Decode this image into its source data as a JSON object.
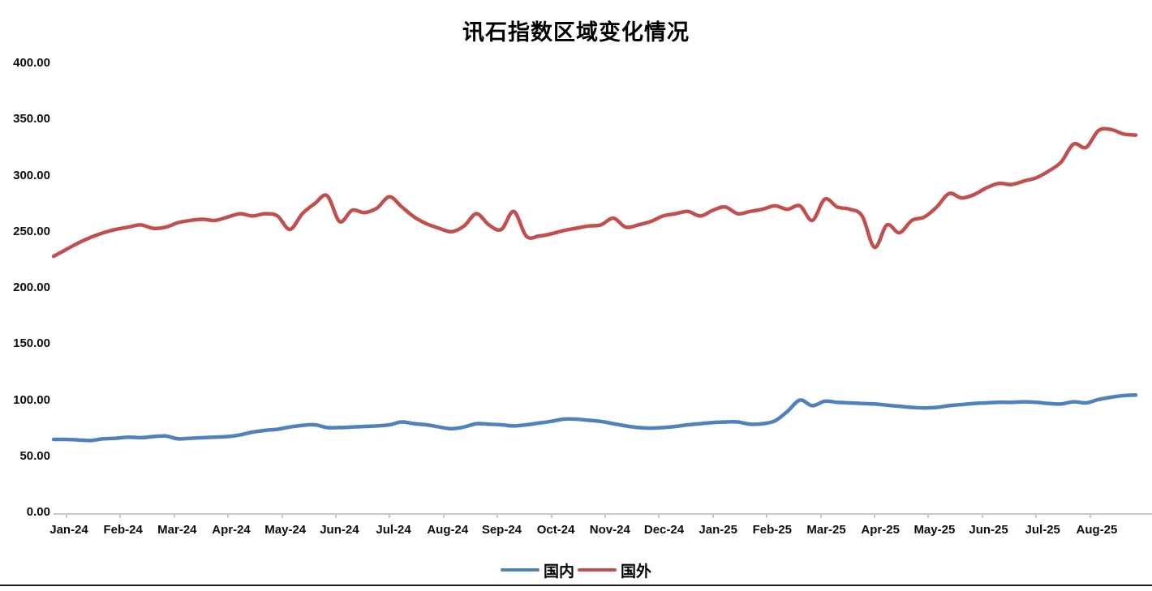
{
  "title": "讯石指数区域变化情况",
  "colors": {
    "domestic_line": "#4F81BD",
    "foreign_line": "#C0504D",
    "axis": "#C8C8C8",
    "text": "#000000"
  },
  "y_axis": {
    "tick_labels": [
      "400.00",
      "350.00",
      "300.00",
      "250.00",
      "200.00",
      "150.00",
      "100.00",
      "50.00",
      "0.00"
    ],
    "min": 0,
    "max": 400,
    "step": 50
  },
  "x_axis": {
    "tick_labels": [
      "Jan-24",
      "Feb-24",
      "Mar-24",
      "Apr-24",
      "May-24",
      "Jun-24",
      "Jul-24",
      "Aug-24",
      "Sep-24",
      "Oct-24",
      "Nov-24",
      "Dec-24",
      "Jan-25",
      "Feb-25",
      "Mar-25",
      "Apr-25",
      "May-25",
      "Jun-25",
      "Jul-25",
      "Aug-25"
    ]
  },
  "legend": [
    {
      "label": "国内",
      "color": "#4F81BD"
    },
    {
      "label": "国外",
      "color": "#C0504D"
    }
  ],
  "chart_data": {
    "type": "line",
    "title": "讯石指数区域变化情况",
    "xlabel": "",
    "ylabel": "",
    "ylim": [
      0,
      400
    ],
    "y_tick_step": 50,
    "grid": false,
    "legend_position": "bottom",
    "categories": [
      "Jan-24",
      "Feb-24",
      "Mar-24",
      "Apr-24",
      "May-24",
      "Jun-24",
      "Jul-24",
      "Aug-24",
      "Sep-24",
      "Oct-24",
      "Nov-24",
      "Dec-24",
      "Jan-25",
      "Feb-25",
      "Mar-25",
      "Apr-25",
      "May-25",
      "Jun-25",
      "Jul-25",
      "Aug-25"
    ],
    "sampling": "weekly (approx. 4-5 points per month, values estimated from plot)",
    "series": [
      {
        "name": "国内",
        "color": "#4F81BD",
        "values": [
          65,
          65,
          64.5,
          64,
          65.5,
          66,
          67,
          66.5,
          67.5,
          68,
          65.5,
          66,
          66.5,
          67,
          67.5,
          69,
          71.5,
          73,
          74,
          76,
          77.5,
          78,
          75.5,
          75.5,
          76,
          76.5,
          77,
          78,
          80.5,
          79,
          78,
          76,
          74.5,
          76,
          79,
          78.5,
          78,
          77,
          78,
          79.5,
          81,
          83,
          83,
          82,
          81,
          79,
          77,
          75.5,
          75,
          75.5,
          76.5,
          78,
          79,
          80,
          80.5,
          80.5,
          78.5,
          79,
          81.5,
          90,
          100,
          95,
          99,
          98,
          97.5,
          97,
          96.5,
          95.5,
          94.5,
          93.5,
          93,
          93.5,
          95,
          96,
          97,
          97.5,
          98,
          98,
          98.5,
          98,
          97,
          96.5,
          98.5,
          97.5,
          100.5,
          102.5,
          104,
          104.5
        ]
      },
      {
        "name": "国外",
        "color": "#C0504D",
        "values": [
          228,
          234,
          240,
          245,
          249,
          252,
          254,
          256,
          253,
          254,
          258,
          260,
          261,
          260,
          263,
          266,
          264,
          266,
          264,
          252,
          266,
          275,
          282,
          259,
          269,
          267,
          271,
          281,
          272,
          263,
          257,
          253,
          250,
          255,
          266,
          256,
          252,
          268,
          246,
          246,
          248,
          251,
          253,
          255,
          256,
          262,
          254,
          256,
          259,
          264,
          266,
          268,
          264,
          269,
          272,
          266,
          268,
          270,
          273,
          270,
          273,
          260,
          279,
          272,
          270,
          264,
          236,
          256,
          249,
          260,
          263,
          272,
          284,
          280,
          283,
          289,
          293,
          292,
          295,
          298,
          304,
          312,
          328,
          325,
          340,
          341,
          337,
          336
        ]
      }
    ]
  }
}
